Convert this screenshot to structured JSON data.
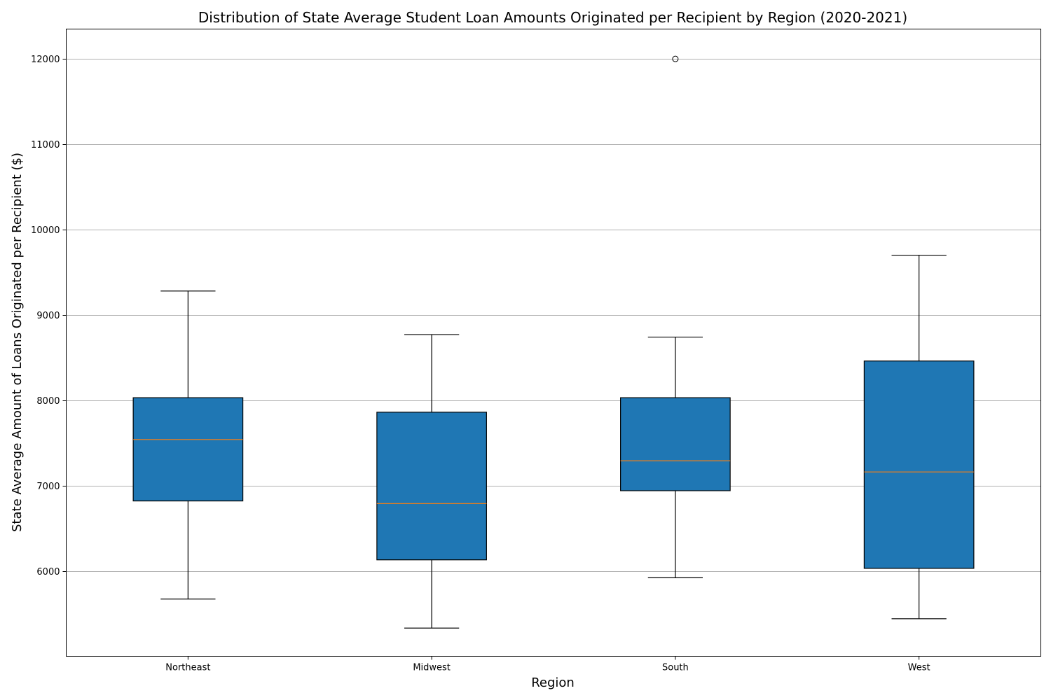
{
  "chart_data": {
    "type": "box",
    "title": "Distribution of State Average Student Loan Amounts Originated per Recipient by Region (2020-2021)",
    "xlabel": "Region",
    "ylabel": "State Average Amount of Loans Originated per Recipient ($)",
    "ylim": [
      5000,
      12350
    ],
    "yticks": [
      6000,
      7000,
      8000,
      9000,
      10000,
      11000,
      12000
    ],
    "grid": "horizontal",
    "box_color": "#1f77b4",
    "median_color": "#ff7f0e",
    "categories": [
      "Northeast",
      "Midwest",
      "South",
      "West"
    ],
    "boxes": [
      {
        "name": "Northeast",
        "whisker_low": 5670,
        "q1": 6820,
        "median": 7540,
        "q3": 8030,
        "whisker_high": 9280,
        "outliers": []
      },
      {
        "name": "Midwest",
        "whisker_low": 5330,
        "q1": 6130,
        "median": 6790,
        "q3": 7860,
        "whisker_high": 8770,
        "outliers": []
      },
      {
        "name": "South",
        "whisker_low": 5920,
        "q1": 6940,
        "median": 7290,
        "q3": 8030,
        "whisker_high": 8740,
        "outliers": [
          12000
        ]
      },
      {
        "name": "West",
        "whisker_low": 5440,
        "q1": 6030,
        "median": 7160,
        "q3": 8460,
        "whisker_high": 9700,
        "outliers": []
      }
    ]
  }
}
